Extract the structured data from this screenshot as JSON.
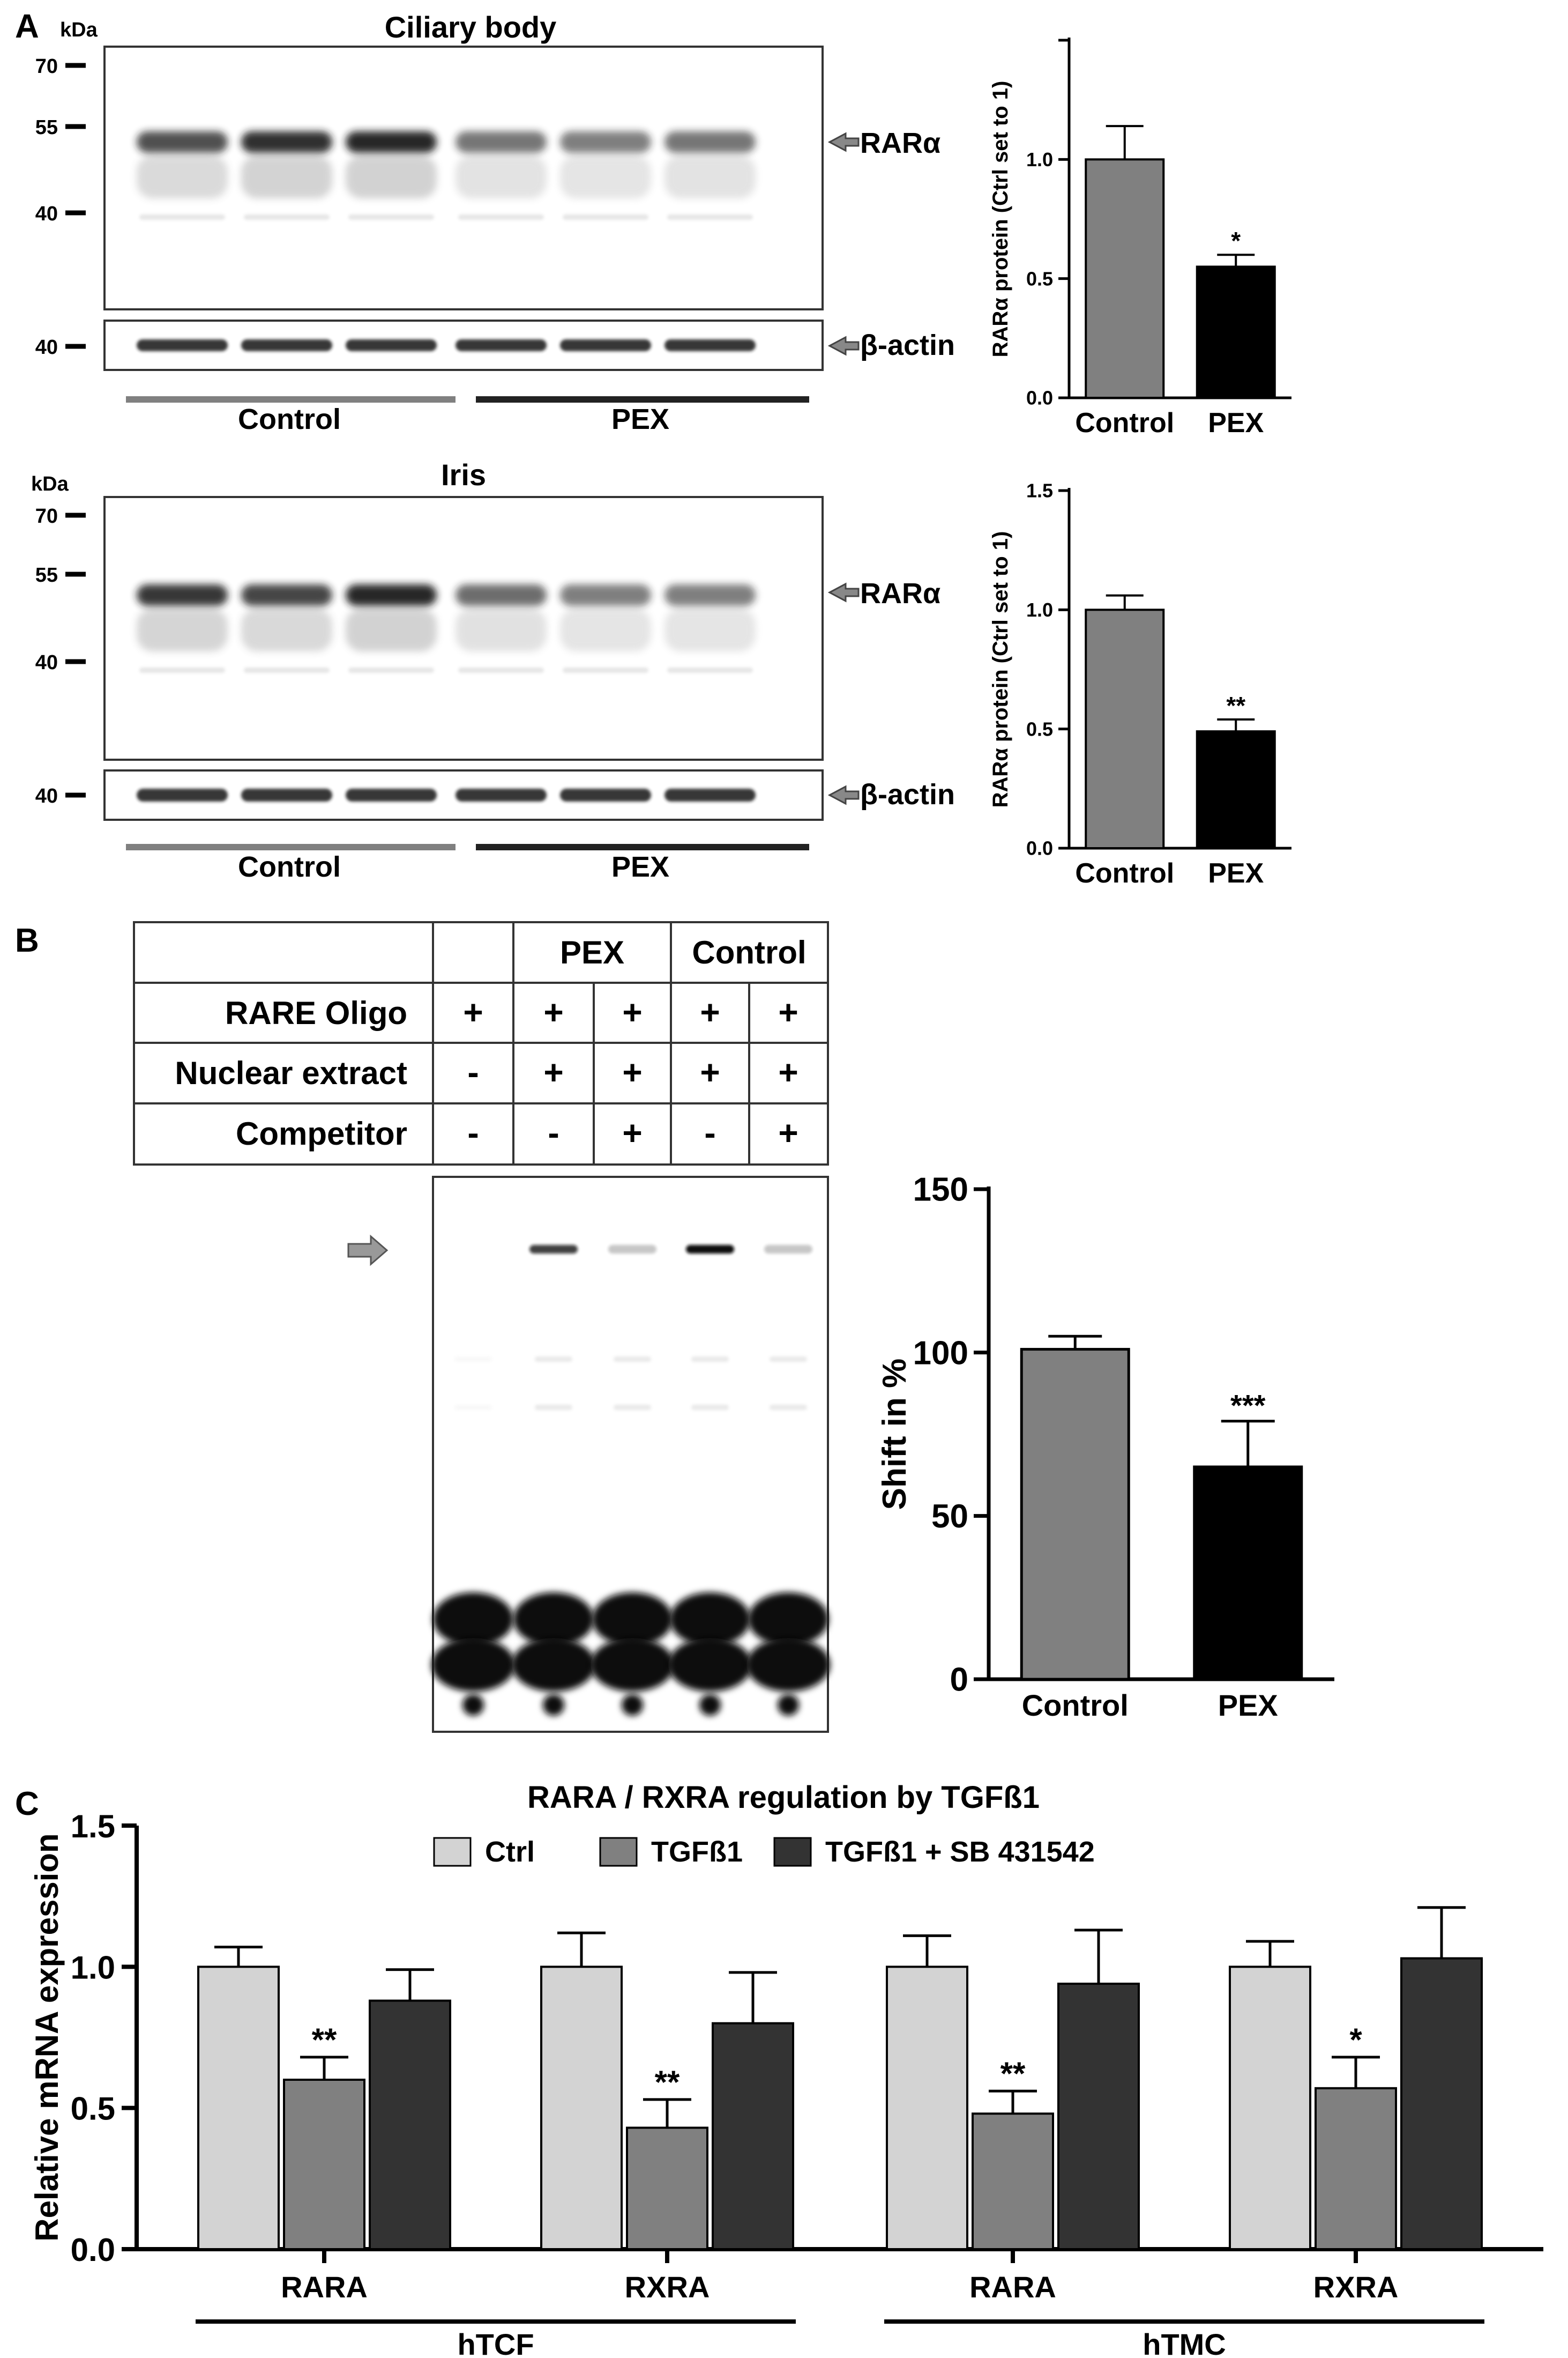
{
  "panel_labels": [
    "A",
    "B",
    "C"
  ],
  "colors": {
    "control_gray": "#808080",
    "pex_black": "#000000",
    "ctrl_light": "#d3d3d3",
    "tgf_mid": "#808080",
    "tgf_sb_dark": "#333333",
    "blot_band": "#1a1a1a",
    "arrow_gray": "#888888"
  },
  "blots": [
    {
      "title": "Ciliary body",
      "kda_label": "kDa",
      "markers": [
        "70",
        "55",
        "40"
      ],
      "actin_marker": "40",
      "target_label": "RARα",
      "actin_label": "β-actin",
      "groups": [
        "Control",
        "PEX"
      ],
      "band_intensity": [
        0.75,
        0.95,
        1.0,
        0.5,
        0.45,
        0.5
      ]
    },
    {
      "title": "Iris",
      "kda_label": "kDa",
      "markers": [
        "70",
        "55",
        "40"
      ],
      "actin_marker": "40",
      "target_label": "RARα",
      "actin_label": "β-actin",
      "groups": [
        "Control",
        "PEX"
      ],
      "band_intensity": [
        0.9,
        0.8,
        1.0,
        0.55,
        0.45,
        0.45
      ]
    }
  ],
  "emsa": {
    "table": {
      "headers": [
        "",
        "",
        "PEX",
        "Control"
      ],
      "rows": [
        {
          "label": "RARE Oligo",
          "values": [
            "+",
            "+",
            "+",
            "+",
            "+"
          ]
        },
        {
          "label": "Nuclear extract",
          "values": [
            "-",
            "+",
            "+",
            "+",
            "+"
          ]
        },
        {
          "label": "Competitor",
          "values": [
            "-",
            "-",
            "+",
            "-",
            "+"
          ]
        }
      ]
    },
    "shift_band_intensity": [
      0,
      0.75,
      0.1,
      1.0,
      0.1
    ]
  },
  "chart_data": [
    {
      "type": "bar",
      "categories": [
        "Control",
        "PEX"
      ],
      "values": [
        1.0,
        0.55
      ],
      "errors": [
        0.14,
        0.05
      ],
      "significance": [
        "",
        "*"
      ],
      "xlabel": "",
      "ylabel": "RARα protein (Ctrl set to 1)",
      "ylim": [
        0,
        1.5
      ],
      "yticks": [
        "0.0",
        "0.5",
        "1.0",
        "1.5"
      ],
      "ytick_values": [
        0,
        0.5,
        1.0,
        1.5
      ],
      "tick_labels_shown": [
        "0.0",
        "0.5",
        "1.0",
        ""
      ],
      "colors": [
        "#808080",
        "#000000"
      ]
    },
    {
      "type": "bar",
      "categories": [
        "Control",
        "PEX"
      ],
      "values": [
        1.0,
        0.49
      ],
      "errors": [
        0.06,
        0.05
      ],
      "significance": [
        "",
        "**"
      ],
      "xlabel": "",
      "ylabel": "RARα protein (Ctrl set to 1)",
      "ylim": [
        0,
        1.5
      ],
      "yticks": [
        "0.0",
        "0.5",
        "1.0",
        "1.5"
      ],
      "ytick_values": [
        0,
        0.5,
        1.0,
        1.5
      ],
      "tick_labels_shown": [
        "0.0",
        "0.5",
        "1.0",
        "1.5"
      ],
      "colors": [
        "#808080",
        "#000000"
      ]
    },
    {
      "type": "bar",
      "categories": [
        "Control",
        "PEX"
      ],
      "values": [
        101,
        65
      ],
      "errors": [
        4,
        14
      ],
      "significance": [
        "",
        "***"
      ],
      "xlabel": "",
      "ylabel": "Shift in %",
      "ylim": [
        0,
        150
      ],
      "yticks": [
        "0",
        "50",
        "100",
        "150"
      ],
      "ytick_values": [
        0,
        50,
        100,
        150
      ],
      "colors": [
        "#808080",
        "#000000"
      ]
    },
    {
      "type": "bar",
      "title": "RARA / RXRA regulation by TGFß1",
      "categories": [
        "RARA",
        "RXRA",
        "RARA",
        "RXRA"
      ],
      "cell_groups": [
        {
          "name": "hTCF",
          "span": [
            0,
            1
          ]
        },
        {
          "name": "hTMC",
          "span": [
            2,
            3
          ]
        }
      ],
      "series": [
        {
          "name": "Ctrl",
          "values": [
            1.0,
            1.0,
            1.0,
            1.0
          ],
          "errors": [
            0.07,
            0.12,
            0.11,
            0.09
          ],
          "color": "#d3d3d3",
          "significance": [
            "",
            "",
            "",
            ""
          ]
        },
        {
          "name": "TGFß1",
          "values": [
            0.6,
            0.43,
            0.48,
            0.57
          ],
          "errors": [
            0.08,
            0.1,
            0.08,
            0.11
          ],
          "color": "#808080",
          "significance": [
            "**",
            "**",
            "**",
            "*"
          ]
        },
        {
          "name": "TGFß1 + SB 431542",
          "values": [
            0.88,
            0.8,
            0.94,
            1.03
          ],
          "errors": [
            0.11,
            0.18,
            0.19,
            0.18
          ],
          "color": "#333333",
          "significance": [
            "",
            "",
            "",
            ""
          ]
        }
      ],
      "xlabel": "",
      "ylabel": "Relative mRNA expression",
      "ylim": [
        0,
        1.5
      ],
      "yticks": [
        "0.0",
        "0.5",
        "1.0",
        "1.5"
      ],
      "ytick_values": [
        0,
        0.5,
        1.0,
        1.5
      ],
      "legend": "top"
    }
  ]
}
